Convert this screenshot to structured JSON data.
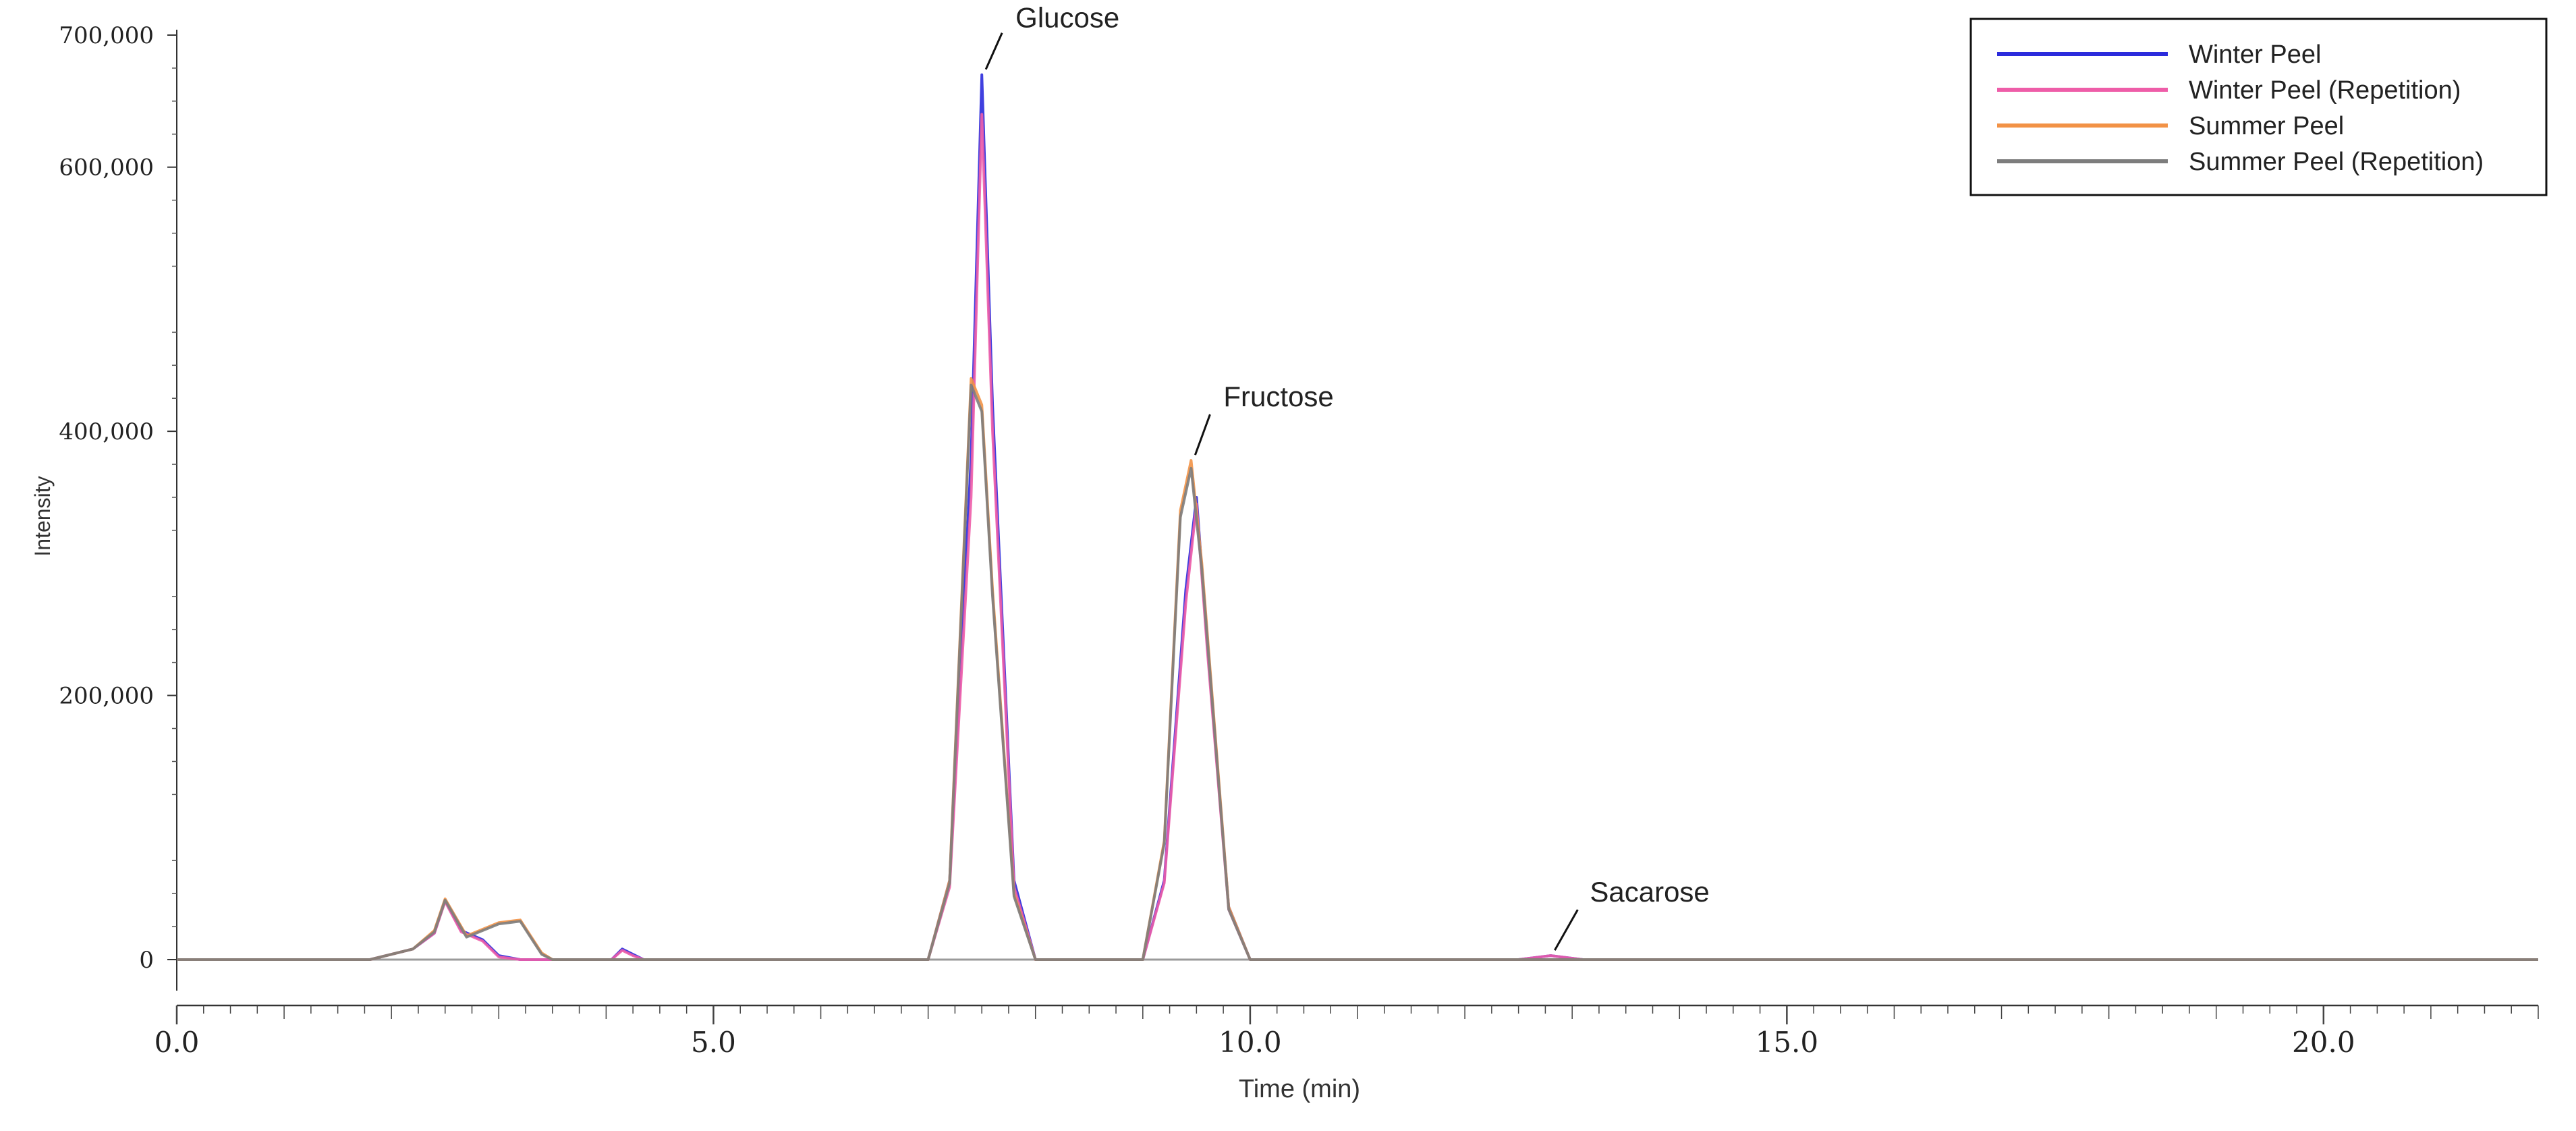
{
  "chart_data": {
    "type": "line",
    "title": "",
    "xlabel": "Time (min)",
    "ylabel": "Intensity",
    "xlim": [
      0.0,
      22.0
    ],
    "ylim": [
      -30000,
      700000
    ],
    "x_ticks": [
      0.0,
      5.0,
      10.0,
      15.0,
      20.0
    ],
    "x_tick_labels": [
      "0.0",
      "5.0",
      "10.0",
      "15.0",
      "20.0"
    ],
    "y_ticks": [
      0,
      200000,
      400000,
      600000,
      700000
    ],
    "y_tick_labels": [
      "0",
      "200,000",
      "400,000",
      "600,000",
      "700,000"
    ],
    "grid": false,
    "legend_position": "top-right",
    "series": [
      {
        "name": "Winter Peel",
        "color": "#2b2bdc",
        "x": [
          0.0,
          1.8,
          2.2,
          2.4,
          2.5,
          2.65,
          2.85,
          3.0,
          3.2,
          3.4,
          4.05,
          4.15,
          4.25,
          4.35,
          7.0,
          7.2,
          7.4,
          7.5,
          7.6,
          7.8,
          8.0,
          9.0,
          9.2,
          9.4,
          9.5,
          9.6,
          9.8,
          10.0,
          12.5,
          12.7,
          12.8,
          12.9,
          13.1,
          22.0
        ],
        "y": [
          0,
          0,
          8000,
          20000,
          45000,
          22000,
          15000,
          3000,
          0,
          0,
          0,
          8000,
          4000,
          0,
          0,
          60000,
          380000,
          670000,
          420000,
          60000,
          0,
          0,
          60000,
          280000,
          350000,
          240000,
          40000,
          0,
          0,
          2000,
          3000,
          2000,
          0,
          0
        ]
      },
      {
        "name": "Winter Peel (Repetition)",
        "color": "#ee5da8",
        "x": [
          0.0,
          1.8,
          2.2,
          2.4,
          2.5,
          2.65,
          2.85,
          3.0,
          3.2,
          3.4,
          4.05,
          4.15,
          4.25,
          4.35,
          7.0,
          7.2,
          7.4,
          7.5,
          7.6,
          7.8,
          8.0,
          9.0,
          9.2,
          9.4,
          9.5,
          9.6,
          9.8,
          10.0,
          12.5,
          12.7,
          12.8,
          12.9,
          13.1,
          22.0
        ],
        "y": [
          0,
          0,
          8000,
          20000,
          44000,
          21000,
          14000,
          2000,
          0,
          0,
          0,
          7000,
          3000,
          0,
          0,
          55000,
          350000,
          640000,
          400000,
          55000,
          0,
          0,
          58000,
          270000,
          345000,
          235000,
          38000,
          0,
          0,
          2000,
          3000,
          2000,
          0,
          0
        ]
      },
      {
        "name": "Summer Peel",
        "color": "#f29246",
        "x": [
          0.0,
          1.8,
          2.2,
          2.4,
          2.5,
          2.7,
          3.0,
          3.2,
          3.4,
          3.5,
          7.0,
          7.2,
          7.4,
          7.5,
          7.6,
          7.8,
          8.0,
          9.0,
          9.2,
          9.35,
          9.45,
          9.55,
          9.8,
          10.0,
          22.0
        ],
        "y": [
          0,
          0,
          8000,
          22000,
          46000,
          18000,
          28000,
          30000,
          5000,
          0,
          0,
          60000,
          440000,
          420000,
          280000,
          50000,
          0,
          0,
          90000,
          340000,
          378000,
          300000,
          40000,
          0,
          0
        ]
      },
      {
        "name": "Summer Peel (Repetition)",
        "color": "#7d7d7d",
        "x": [
          0.0,
          1.8,
          2.2,
          2.4,
          2.5,
          2.7,
          3.0,
          3.2,
          3.4,
          3.5,
          7.0,
          7.2,
          7.4,
          7.5,
          7.6,
          7.8,
          8.0,
          9.0,
          9.2,
          9.35,
          9.45,
          9.55,
          9.8,
          10.0,
          22.0
        ],
        "y": [
          0,
          0,
          8000,
          21000,
          45000,
          17000,
          27000,
          29000,
          4000,
          0,
          0,
          58000,
          435000,
          415000,
          275000,
          48000,
          0,
          0,
          88000,
          335000,
          372000,
          295000,
          38000,
          0,
          0
        ]
      }
    ],
    "annotations": [
      {
        "text": "Glucose",
        "x": 7.5,
        "y": 670000
      },
      {
        "text": "Fructose",
        "x": 9.45,
        "y": 378000
      },
      {
        "text": "Sacarose",
        "x": 12.8,
        "y": 3000
      }
    ]
  }
}
